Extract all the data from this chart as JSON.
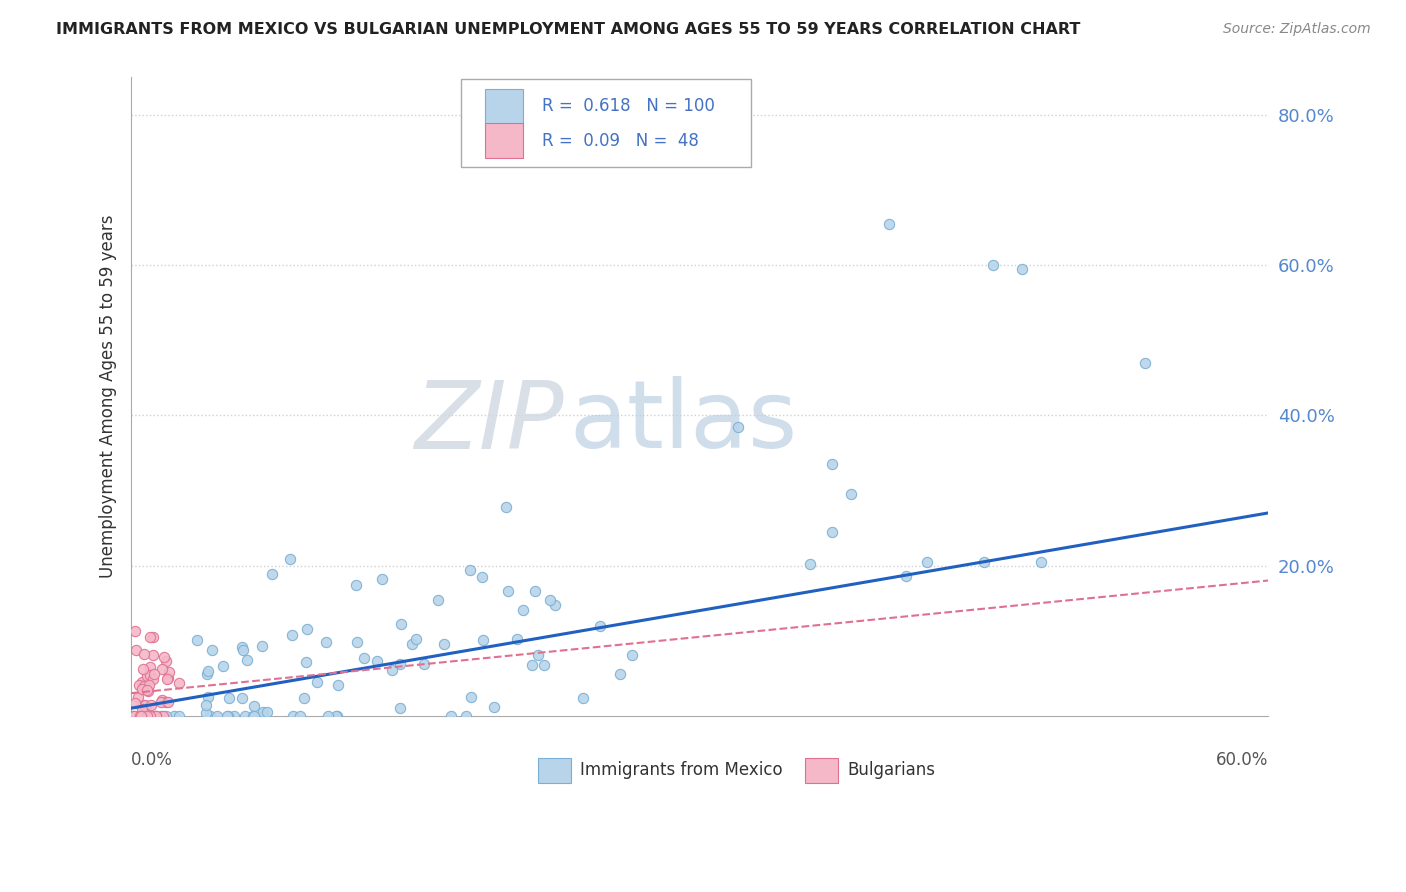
{
  "title": "IMMIGRANTS FROM MEXICO VS BULGARIAN UNEMPLOYMENT AMONG AGES 55 TO 59 YEARS CORRELATION CHART",
  "source": "Source: ZipAtlas.com",
  "ylabel": "Unemployment Among Ages 55 to 59 years",
  "series1": {
    "label": "Immigrants from Mexico",
    "color": "#b8d4ea",
    "edge_color": "#7bafd4",
    "R": 0.618,
    "N": 100,
    "line_color": "#2060c0"
  },
  "series2": {
    "label": "Bulgarians",
    "color": "#f4b8c8",
    "edge_color": "#e07090",
    "R": 0.09,
    "N": 48,
    "line_color": "#e07090"
  },
  "xlim": [
    0.0,
    0.6
  ],
  "ylim": [
    0.0,
    0.85
  ],
  "yticks": [
    0.2,
    0.4,
    0.6,
    0.8
  ],
  "ytick_labels": [
    "20.0%",
    "40.0%",
    "60.0%",
    "80.0%"
  ],
  "r_text_color": "#4472c4",
  "n_text_color": "#e05050",
  "watermark_zip": "ZIP",
  "watermark_atlas": "atlas",
  "background_color": "#ffffff",
  "grid_color": "#cccccc"
}
